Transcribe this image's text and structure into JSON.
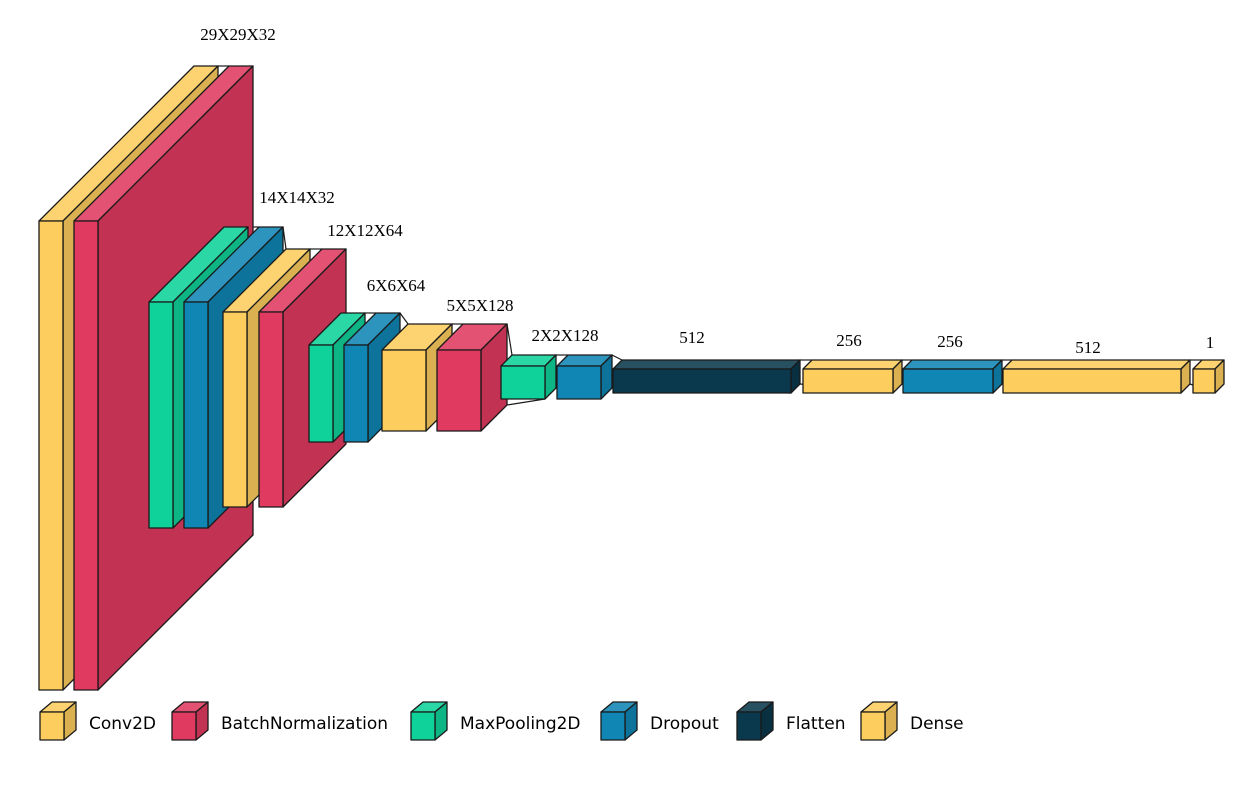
{
  "colors": {
    "conv2d": "#fdcd5e",
    "batchnorm": "#e03a60",
    "maxpool": "#0fd19a",
    "dropout": "#1086b4",
    "flatten": "#0a384c",
    "dense": "#fdcd5e"
  },
  "layers": [
    {
      "type": "conv2d"
    },
    {
      "type": "batchnorm"
    },
    {
      "type": "maxpool"
    },
    {
      "type": "dropout"
    },
    {
      "type": "conv2d"
    },
    {
      "type": "batchnorm"
    },
    {
      "type": "maxpool"
    },
    {
      "type": "dropout"
    },
    {
      "type": "conv2d"
    },
    {
      "type": "batchnorm"
    },
    {
      "type": "maxpool"
    },
    {
      "type": "dropout"
    },
    {
      "type": "flatten"
    },
    {
      "type": "dense"
    },
    {
      "type": "dropout"
    },
    {
      "type": "dense"
    },
    {
      "type": "dense"
    }
  ],
  "dim_labels": [
    "29X29X32",
    "14X14X32",
    "12X12X64",
    "6X6X64",
    "5X5X128",
    "2X2X128",
    "512",
    "256",
    "256",
    "512",
    "1"
  ],
  "legend": [
    {
      "type": "conv2d",
      "label": "Conv2D"
    },
    {
      "type": "batchnorm",
      "label": "BatchNormalization"
    },
    {
      "type": "maxpool",
      "label": "MaxPooling2D"
    },
    {
      "type": "dropout",
      "label": "Dropout"
    },
    {
      "type": "flatten",
      "label": "Flatten"
    },
    {
      "type": "dense",
      "label": "Dense"
    }
  ]
}
